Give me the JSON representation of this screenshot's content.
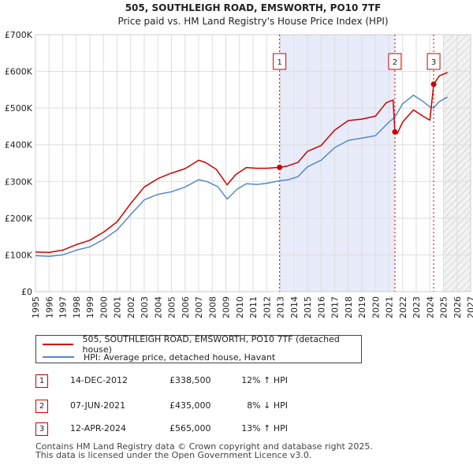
{
  "chart_data": {
    "type": "line",
    "title": "505, SOUTHLEIGH ROAD, EMSWORTH, PO10 7TF",
    "subtitle": "Price paid vs. HM Land Registry's House Price Index (HPI)",
    "xlim": [
      1995,
      2027
    ],
    "ylim": [
      0,
      700000
    ],
    "x_ticks": [
      "1995",
      "1996",
      "1997",
      "1998",
      "1999",
      "2000",
      "2001",
      "2002",
      "2003",
      "2004",
      "2005",
      "2006",
      "2007",
      "2008",
      "2009",
      "2010",
      "2011",
      "2012",
      "2013",
      "2014",
      "2015",
      "2016",
      "2017",
      "2018",
      "2019",
      "2020",
      "2021",
      "2022",
      "2023",
      "2024",
      "2025",
      "2026",
      "2027"
    ],
    "y_ticks": [
      {
        "value": 0,
        "label": "£0"
      },
      {
        "value": 100000,
        "label": "£100K"
      },
      {
        "value": 200000,
        "label": "£200K"
      },
      {
        "value": 300000,
        "label": "£300K"
      },
      {
        "value": 400000,
        "label": "£400K"
      },
      {
        "value": 500000,
        "label": "£500K"
      },
      {
        "value": 600000,
        "label": "£600K"
      },
      {
        "value": 700000,
        "label": "£700K"
      }
    ],
    "shaded_period": [
      2012.95,
      2021.43
    ],
    "forecast_from": 2025.0,
    "series": [
      {
        "name": "505, SOUTHLEIGH ROAD, EMSWORTH, PO10 7TF (detached house)",
        "color": "#cc0000",
        "points": [
          [
            1995.0,
            108000
          ],
          [
            1996.0,
            107000
          ],
          [
            1997.0,
            113000
          ],
          [
            1998.0,
            128000
          ],
          [
            1999.0,
            140000
          ],
          [
            2000.0,
            162000
          ],
          [
            2001.0,
            190000
          ],
          [
            2002.0,
            240000
          ],
          [
            2003.0,
            285000
          ],
          [
            2004.0,
            308000
          ],
          [
            2005.0,
            323000
          ],
          [
            2006.0,
            335000
          ],
          [
            2007.0,
            358000
          ],
          [
            2007.5,
            352000
          ],
          [
            2008.3,
            333000
          ],
          [
            2009.1,
            291000
          ],
          [
            2009.7,
            318000
          ],
          [
            2010.5,
            338000
          ],
          [
            2011.3,
            336000
          ],
          [
            2012.0,
            336000
          ],
          [
            2012.95,
            338500
          ],
          [
            2013.5,
            342000
          ],
          [
            2014.3,
            352000
          ],
          [
            2015.0,
            382000
          ],
          [
            2016.0,
            398000
          ],
          [
            2017.0,
            440000
          ],
          [
            2018.0,
            466000
          ],
          [
            2019.0,
            470000
          ],
          [
            2020.0,
            478000
          ],
          [
            2020.8,
            515000
          ],
          [
            2021.3,
            522000
          ],
          [
            2021.43,
            435000
          ],
          [
            2021.6,
            430000
          ],
          [
            2022.0,
            462000
          ],
          [
            2022.8,
            495000
          ],
          [
            2023.5,
            478000
          ],
          [
            2024.0,
            467000
          ],
          [
            2024.28,
            565000
          ],
          [
            2024.7,
            588000
          ],
          [
            2025.3,
            597000
          ]
        ]
      },
      {
        "name": "HPI: Average price, detached house, Havant",
        "color": "#5588cc",
        "points": [
          [
            1995.0,
            98000
          ],
          [
            1996.0,
            96000
          ],
          [
            1997.0,
            100000
          ],
          [
            1998.0,
            113000
          ],
          [
            1999.0,
            122000
          ],
          [
            2000.0,
            142000
          ],
          [
            2001.0,
            168000
          ],
          [
            2002.0,
            210000
          ],
          [
            2003.0,
            250000
          ],
          [
            2004.0,
            265000
          ],
          [
            2005.0,
            272000
          ],
          [
            2006.0,
            285000
          ],
          [
            2007.0,
            305000
          ],
          [
            2007.6,
            300000
          ],
          [
            2008.4,
            286000
          ],
          [
            2009.1,
            252000
          ],
          [
            2009.8,
            278000
          ],
          [
            2010.5,
            294000
          ],
          [
            2011.3,
            292000
          ],
          [
            2012.0,
            295000
          ],
          [
            2012.95,
            302000
          ],
          [
            2013.6,
            305000
          ],
          [
            2014.3,
            313000
          ],
          [
            2015.0,
            340000
          ],
          [
            2016.0,
            358000
          ],
          [
            2017.0,
            392000
          ],
          [
            2018.0,
            412000
          ],
          [
            2019.0,
            418000
          ],
          [
            2020.0,
            425000
          ],
          [
            2021.0,
            462000
          ],
          [
            2021.43,
            475000
          ],
          [
            2022.0,
            512000
          ],
          [
            2022.8,
            535000
          ],
          [
            2023.5,
            518000
          ],
          [
            2024.0,
            503000
          ],
          [
            2024.28,
            500000
          ],
          [
            2024.7,
            518000
          ],
          [
            2025.3,
            530000
          ]
        ]
      }
    ],
    "markers": [
      {
        "id": "1",
        "x": 2012.95,
        "y": 338500
      },
      {
        "id": "2",
        "x": 2021.43,
        "y": 435000
      },
      {
        "id": "3",
        "x": 2024.28,
        "y": 565000
      }
    ]
  },
  "legend": {
    "items": [
      {
        "label": "505, SOUTHLEIGH ROAD, EMSWORTH, PO10 7TF (detached house)",
        "color": "#cc0000"
      },
      {
        "label": "HPI: Average price, detached house, Havant",
        "color": "#5588cc"
      }
    ]
  },
  "transactions": [
    {
      "id": "1",
      "date": "14-DEC-2012",
      "price": "£338,500",
      "hpi": "12% ↑ HPI"
    },
    {
      "id": "2",
      "date": "07-JUN-2021",
      "price": "£435,000",
      "hpi": "8% ↓ HPI"
    },
    {
      "id": "3",
      "date": "12-APR-2024",
      "price": "£565,000",
      "hpi": "13% ↑ HPI"
    }
  ],
  "footer": {
    "line1": "Contains HM Land Registry data © Crown copyright and database right 2025.",
    "line2": "This data is licensed under the Open Government Licence v3.0."
  }
}
